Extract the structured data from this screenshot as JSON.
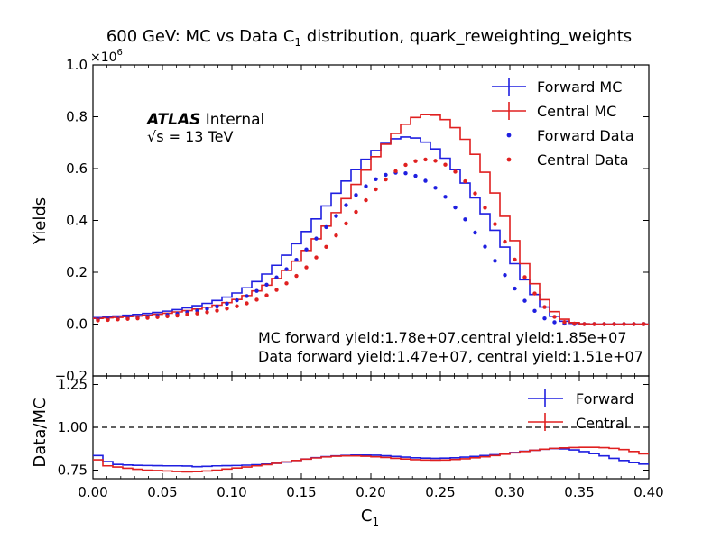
{
  "chart_data": [
    {
      "type": "line",
      "title": "600 GeV: MC vs Data C",
      "title_sub": "1",
      "title_rest": " distribution, quark_reweighting_weights",
      "ylabel": "Yields",
      "y_scale_label": "×10",
      "y_scale_exp": "6",
      "xlim": [
        0.0,
        0.4
      ],
      "ylim": [
        -0.2,
        1.0
      ],
      "y_ticks": [
        "−0.2",
        "0.0",
        "0.2",
        "0.4",
        "0.6",
        "0.8",
        "1.0"
      ],
      "atlas_label": "ATLAS",
      "atlas_status": "Internal",
      "energy_label": "√s = 13 TeV",
      "annotation_mc": "MC forward yield:1.78e+07,central yield:1.85e+07",
      "annotation_data": "Data forward yield:1.47e+07, central yield:1.51e+07",
      "legend_position": "top-right",
      "colors": {
        "forward": "#1f1fe0",
        "central": "#e02020"
      },
      "series": [
        {
          "name": "Forward MC",
          "style": "step",
          "color": "#1f1fe0",
          "values": [
            0.025,
            0.028,
            0.031,
            0.034,
            0.037,
            0.041,
            0.045,
            0.05,
            0.056,
            0.063,
            0.071,
            0.08,
            0.091,
            0.104,
            0.12,
            0.14,
            0.164,
            0.193,
            0.227,
            0.266,
            0.31,
            0.357,
            0.406,
            0.456,
            0.505,
            0.552,
            0.596,
            0.636,
            0.67,
            0.697,
            0.715,
            0.722,
            0.718,
            0.702,
            0.676,
            0.64,
            0.596,
            0.544,
            0.487,
            0.426,
            0.362,
            0.297,
            0.233,
            0.171,
            0.114,
            0.066,
            0.03,
            0.011,
            0.003,
            0.001,
            0.0,
            0.0,
            0.0,
            0.0,
            0.0,
            0.0
          ]
        },
        {
          "name": "Central MC",
          "style": "step",
          "color": "#e02020",
          "values": [
            0.022,
            0.024,
            0.026,
            0.029,
            0.031,
            0.034,
            0.038,
            0.042,
            0.047,
            0.052,
            0.058,
            0.065,
            0.073,
            0.083,
            0.095,
            0.11,
            0.128,
            0.15,
            0.176,
            0.207,
            0.243,
            0.284,
            0.329,
            0.378,
            0.43,
            0.484,
            0.539,
            0.594,
            0.646,
            0.694,
            0.736,
            0.771,
            0.797,
            0.808,
            0.806,
            0.789,
            0.758,
            0.713,
            0.655,
            0.586,
            0.506,
            0.416,
            0.322,
            0.233,
            0.156,
            0.094,
            0.048,
            0.019,
            0.006,
            0.001,
            0.0,
            0.0,
            0.0,
            0.0,
            0.0,
            0.0
          ]
        },
        {
          "name": "Forward Data",
          "style": "points",
          "color": "#1f1fe0",
          "values": [
            0.017,
            0.019,
            0.021,
            0.024,
            0.026,
            0.029,
            0.032,
            0.036,
            0.04,
            0.046,
            0.052,
            0.059,
            0.068,
            0.079,
            0.092,
            0.108,
            0.128,
            0.152,
            0.18,
            0.212,
            0.248,
            0.288,
            0.33,
            0.374,
            0.417,
            0.459,
            0.498,
            0.532,
            0.559,
            0.576,
            0.584,
            0.582,
            0.572,
            0.553,
            0.526,
            0.491,
            0.45,
            0.404,
            0.353,
            0.299,
            0.244,
            0.189,
            0.137,
            0.09,
            0.051,
            0.022,
            0.007,
            0.002,
            0.0,
            0.0,
            0.0,
            0.0,
            0.0,
            0.0,
            0.0,
            0.0
          ]
        },
        {
          "name": "Central Data",
          "style": "points",
          "color": "#e02020",
          "values": [
            0.014,
            0.016,
            0.018,
            0.02,
            0.022,
            0.024,
            0.027,
            0.03,
            0.033,
            0.037,
            0.041,
            0.046,
            0.052,
            0.06,
            0.069,
            0.08,
            0.094,
            0.111,
            0.132,
            0.157,
            0.186,
            0.219,
            0.257,
            0.298,
            0.342,
            0.388,
            0.433,
            0.478,
            0.52,
            0.558,
            0.59,
            0.614,
            0.629,
            0.635,
            0.63,
            0.615,
            0.588,
            0.551,
            0.504,
            0.449,
            0.386,
            0.318,
            0.249,
            0.181,
            0.118,
            0.066,
            0.028,
            0.008,
            0.002,
            0.0,
            0.0,
            0.0,
            0.0,
            0.0,
            0.0,
            0.0
          ]
        }
      ]
    },
    {
      "type": "line",
      "ylabel": "Data/MC",
      "xlabel": "C",
      "xlabel_sub": "1",
      "xlim": [
        0.0,
        0.4
      ],
      "ylim": [
        0.7,
        1.3
      ],
      "x_ticks": [
        "0.00",
        "0.05",
        "0.10",
        "0.15",
        "0.20",
        "0.25",
        "0.30",
        "0.35",
        "0.40"
      ],
      "y_ticks": [
        "0.75",
        "1.00",
        "1.25"
      ],
      "reference_line": 1.0,
      "legend_position": "top-right",
      "series": [
        {
          "name": "Forward",
          "style": "step",
          "color": "#1f1fe0",
          "values": [
            0.835,
            0.8,
            0.783,
            0.78,
            0.778,
            0.777,
            0.776,
            0.775,
            0.775,
            0.774,
            0.77,
            0.772,
            0.775,
            0.776,
            0.777,
            0.779,
            0.781,
            0.785,
            0.79,
            0.797,
            0.806,
            0.815,
            0.823,
            0.829,
            0.833,
            0.836,
            0.838,
            0.838,
            0.837,
            0.834,
            0.83,
            0.826,
            0.822,
            0.82,
            0.819,
            0.82,
            0.822,
            0.826,
            0.83,
            0.835,
            0.84,
            0.846,
            0.853,
            0.86,
            0.866,
            0.872,
            0.876,
            0.874,
            0.868,
            0.858,
            0.846,
            0.833,
            0.819,
            0.806,
            0.794,
            0.785
          ]
        },
        {
          "name": "Central",
          "style": "step",
          "color": "#e02020",
          "values": [
            0.81,
            0.775,
            0.768,
            0.761,
            0.755,
            0.75,
            0.748,
            0.745,
            0.742,
            0.74,
            0.741,
            0.745,
            0.75,
            0.756,
            0.762,
            0.768,
            0.775,
            0.782,
            0.79,
            0.798,
            0.806,
            0.814,
            0.821,
            0.827,
            0.831,
            0.833,
            0.833,
            0.831,
            0.828,
            0.824,
            0.819,
            0.815,
            0.811,
            0.809,
            0.808,
            0.809,
            0.812,
            0.816,
            0.822,
            0.828,
            0.835,
            0.843,
            0.851,
            0.859,
            0.866,
            0.872,
            0.877,
            0.88,
            0.882,
            0.883,
            0.883,
            0.881,
            0.877,
            0.87,
            0.859,
            0.845
          ]
        }
      ]
    }
  ]
}
